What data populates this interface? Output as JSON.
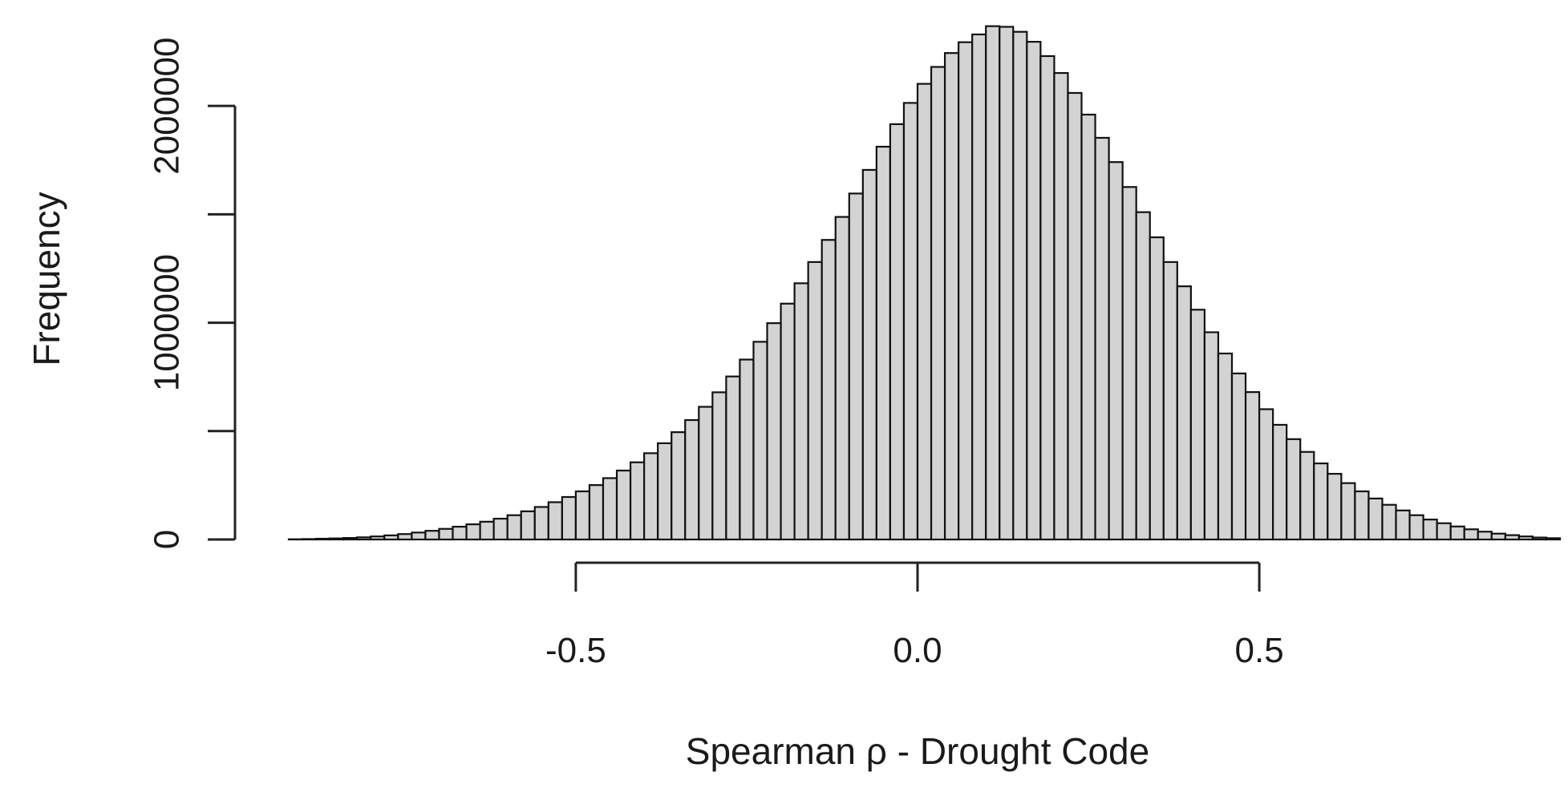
{
  "chart_data": {
    "type": "bar",
    "title": "",
    "xlabel": "Spearman ρ - Drought Code",
    "ylabel": "Frequency",
    "x_ticks": [
      -0.5,
      0.0,
      0.5
    ],
    "x_tick_labels": [
      "-0.5",
      "0.0",
      "0.5"
    ],
    "y_ticks": [
      0,
      500000,
      1000000,
      1500000,
      2000000
    ],
    "y_tick_labels": [
      "0",
      "",
      "1000000",
      "",
      "2000000"
    ],
    "xlim": [
      -0.92,
      0.92
    ],
    "ylim": [
      0,
      2400000
    ],
    "bin_width": 0.02,
    "bin_start": -0.92,
    "grid": false,
    "legend": "none",
    "colors": {
      "bar_fill": "#d3d3d3",
      "bar_edge": "#111111",
      "axis": "#222222"
    },
    "frequencies": [
      1000,
      2000,
      3500,
      5000,
      7000,
      10000,
      14000,
      19000,
      25000,
      32000,
      40000,
      49000,
      59000,
      70000,
      82000,
      96000,
      112000,
      130000,
      150000,
      172000,
      196000,
      222000,
      251000,
      283000,
      318000,
      356000,
      398000,
      444000,
      495000,
      551000,
      612000,
      679000,
      752000,
      830000,
      912000,
      998000,
      1088000,
      1182000,
      1280000,
      1382000,
      1488000,
      1596000,
      1705000,
      1812000,
      1916000,
      2014000,
      2102000,
      2180000,
      2244000,
      2294000,
      2330000,
      2368000,
      2365000,
      2342000,
      2296000,
      2230000,
      2152000,
      2060000,
      1960000,
      1853000,
      1741000,
      1626000,
      1510000,
      1394000,
      1280000,
      1168000,
      1060000,
      956000,
      858000,
      766000,
      680000,
      601000,
      529000,
      463000,
      404000,
      351000,
      303000,
      260000,
      222000,
      189000,
      160000,
      134000,
      112000,
      92000,
      75000,
      60000,
      47000,
      36000,
      27000,
      20000,
      14000,
      9000,
      6000
    ]
  }
}
